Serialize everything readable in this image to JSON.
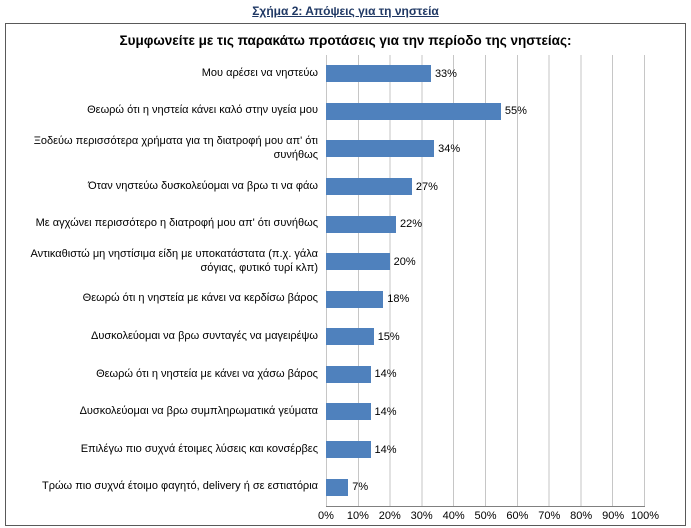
{
  "figure_caption": "Σχήμα 2: Απόψεις για τη νηστεία",
  "chart_data": {
    "type": "bar",
    "orientation": "horizontal",
    "title": "Συμφωνείτε με τις παρακάτω προτάσεις για την περίοδο της νηστείας:",
    "categories": [
      "Μου αρέσει να νηστεύω",
      "Θεωρώ ότι η νηστεία κάνει καλό στην υγεία μου",
      "Ξοδεύω περισσότερα χρήματα για τη διατροφή μου απ' ότι συνήθως",
      "Όταν νηστεύω δυσκολεύομαι να βρω τι να φάω",
      "Με αγχώνει περισσότερο η διατροφή μου απ' ότι συνήθως",
      "Αντικαθιστώ μη νηστίσιμα είδη με υποκατάστατα (π.χ. γάλα σόγιας, φυτικό τυρί κλπ)",
      "Θεωρώ ότι η νηστεία με κάνει να κερδίσω βάρος",
      "Δυσκολεύομαι να βρω συνταγές να μαγειρέψω",
      "Θεωρώ ότι η νηστεία με κάνει να χάσω βάρος",
      "Δυσκολεύομαι να βρω συμπληρωματικά γεύματα",
      "Επιλέγω πιο συχνά έτοιμες λύσεις και κονσέρβες",
      "Τρώω πιο συχνά έτοιμο φαγητό, delivery ή σε εστιατόρια"
    ],
    "values": [
      33,
      55,
      34,
      27,
      22,
      20,
      18,
      15,
      14,
      14,
      14,
      7
    ],
    "value_labels": [
      "33%",
      "55%",
      "34%",
      "27%",
      "22%",
      "20%",
      "18%",
      "15%",
      "14%",
      "14%",
      "14%",
      "7%"
    ],
    "x_ticks": [
      "0%",
      "10%",
      "20%",
      "30%",
      "40%",
      "50%",
      "60%",
      "70%",
      "80%",
      "90%",
      "100%"
    ],
    "xlim": [
      0,
      100
    ],
    "grid": true,
    "legend": "none",
    "bar_color": "#4F81BD"
  }
}
